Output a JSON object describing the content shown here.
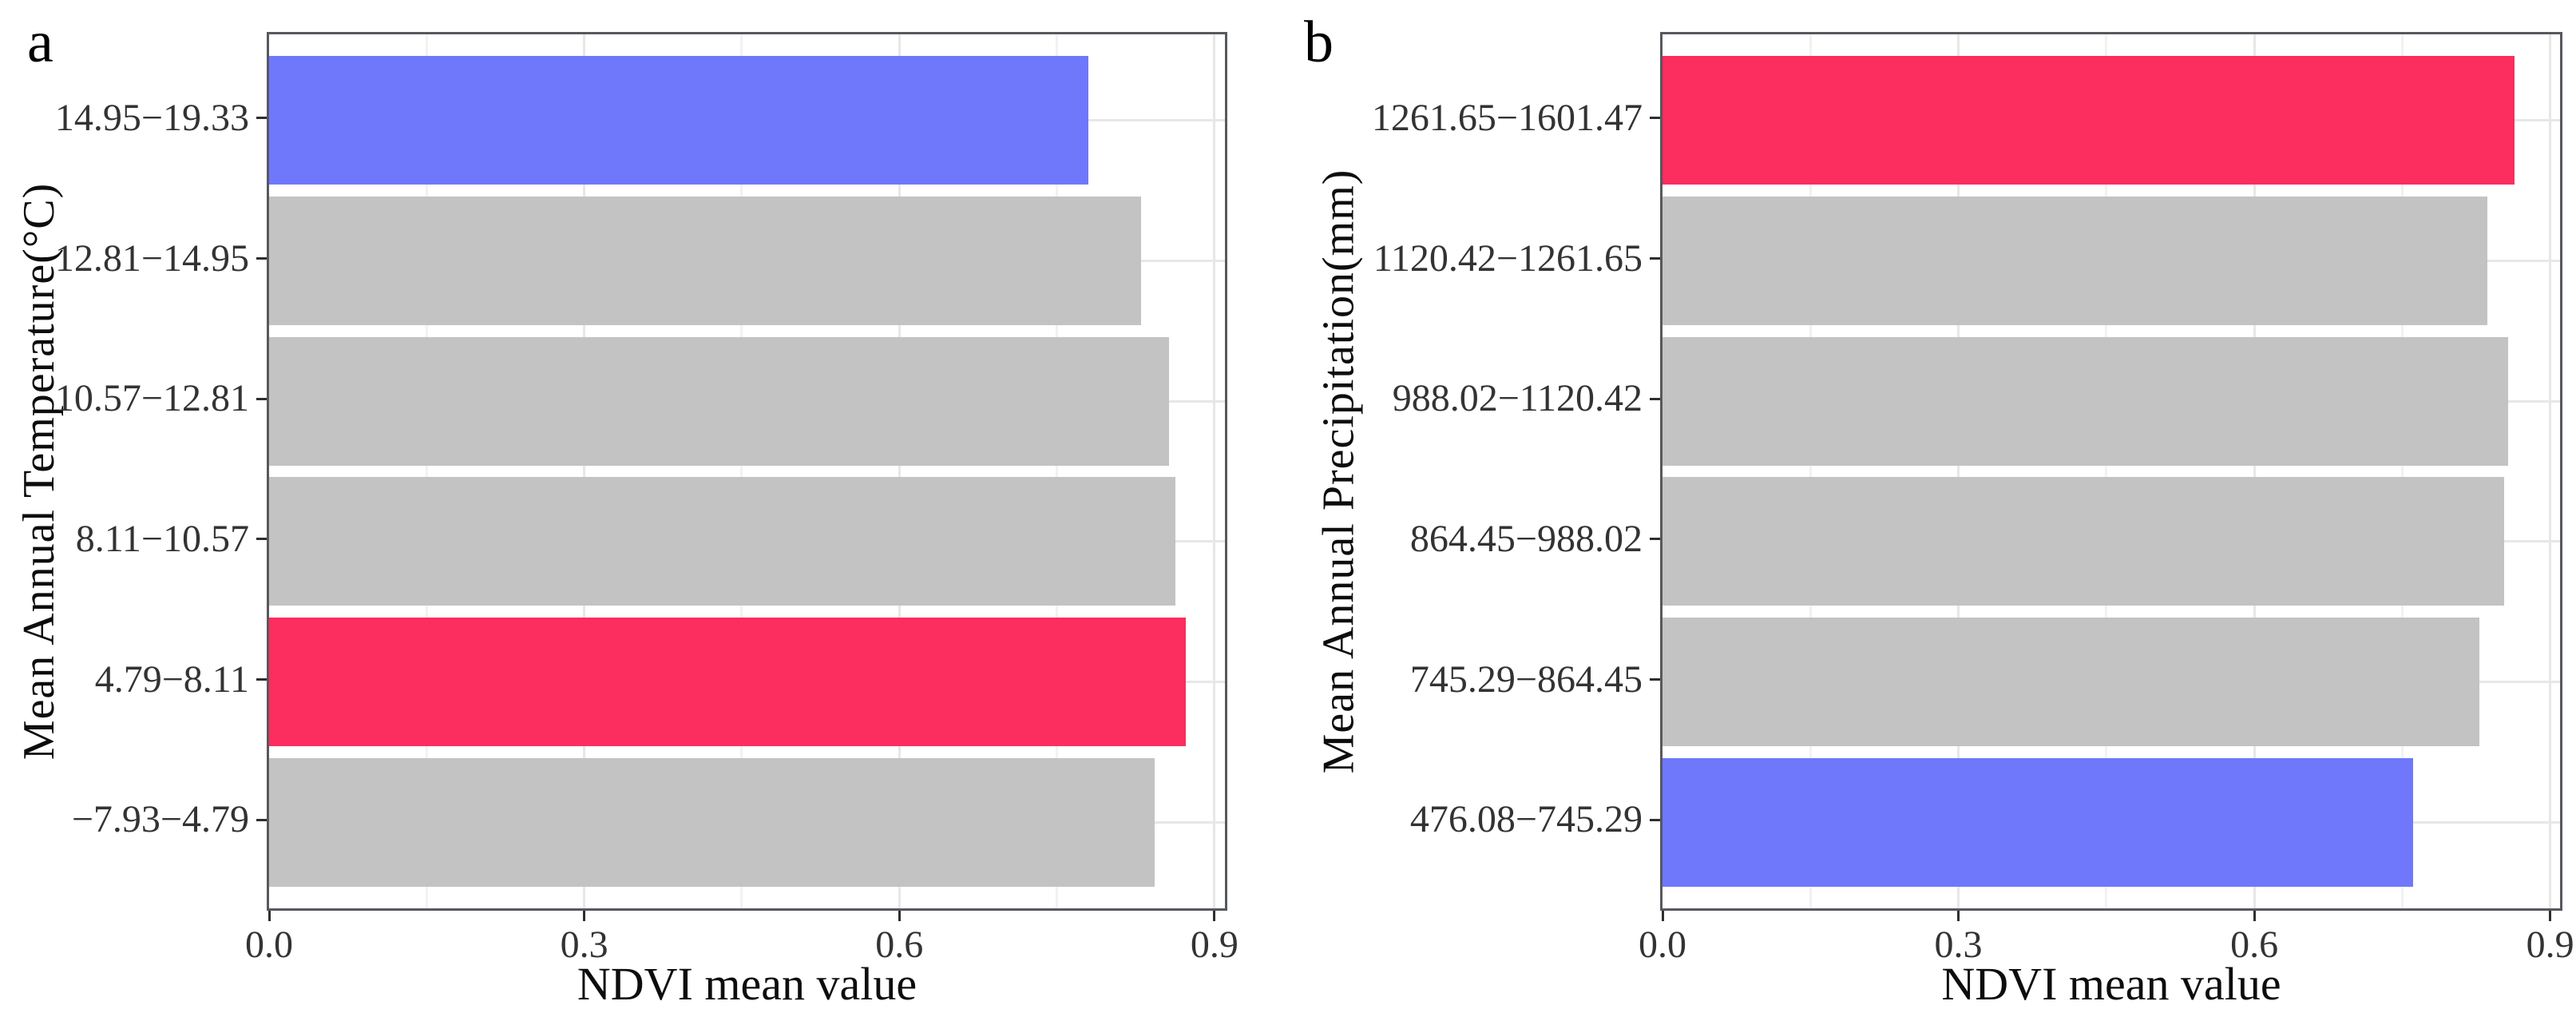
{
  "colors": {
    "bar_default": "#C3C3C3",
    "bar_highlight_red": "#FC2D5F",
    "bar_highlight_blue": "#6F78FB",
    "panel_border": "#56595D",
    "grid_major": "#E7E7E7",
    "grid_minor": "#F2F2F2",
    "tick_mark": "#2E2E2E",
    "axis_text": "#333333",
    "title_text": "#0D0D0D"
  },
  "chart_data": [
    {
      "type": "bar",
      "orientation": "horizontal",
      "panel_label": "a",
      "xlabel": "NDVI mean value",
      "ylabel": "Mean Annual Temperature(°C)",
      "categories": [
        "14.95−19.33",
        "12.81−14.95",
        "10.57−12.81",
        "8.11−10.57",
        "4.79−8.11",
        "−7.93−4.79"
      ],
      "values": [
        0.78,
        0.83,
        0.857,
        0.863,
        0.873,
        0.843
      ],
      "bar_colors": [
        "#6F78FB",
        "#C3C3C3",
        "#C3C3C3",
        "#C3C3C3",
        "#FC2D5F",
        "#C3C3C3"
      ],
      "xlim": [
        0,
        0.91
      ],
      "xticks": [
        0,
        0.3,
        0.6,
        0.9
      ],
      "xtick_labels": [
        "0.0",
        "0.3",
        "0.6",
        "0.9"
      ],
      "grid_major": [
        0.3,
        0.6,
        0.9
      ],
      "grid_minor": [
        0.15,
        0.45,
        0.75
      ],
      "grid": "on",
      "legend": "none"
    },
    {
      "type": "bar",
      "orientation": "horizontal",
      "panel_label": "b",
      "xlabel": "NDVI mean value",
      "ylabel": "Mean Annual Precipitation(mm)",
      "categories": [
        "1261.65−1601.47",
        "1120.42−1261.65",
        "988.02−1120.42",
        "864.45−988.02",
        "745.29−864.45",
        "476.08−745.29"
      ],
      "values": [
        0.864,
        0.836,
        0.857,
        0.853,
        0.828,
        0.761
      ],
      "bar_colors": [
        "#FC2D5F",
        "#C3C3C3",
        "#C3C3C3",
        "#C3C3C3",
        "#C3C3C3",
        "#6F78FB"
      ],
      "xlim": [
        0,
        0.91
      ],
      "xticks": [
        0,
        0.3,
        0.6,
        0.9
      ],
      "xtick_labels": [
        "0.0",
        "0.3",
        "0.6",
        "0.9"
      ],
      "grid_major": [
        0.3,
        0.6,
        0.9
      ],
      "grid_minor": [
        0.15,
        0.45,
        0.75
      ],
      "grid": "on",
      "legend": "none"
    }
  ]
}
